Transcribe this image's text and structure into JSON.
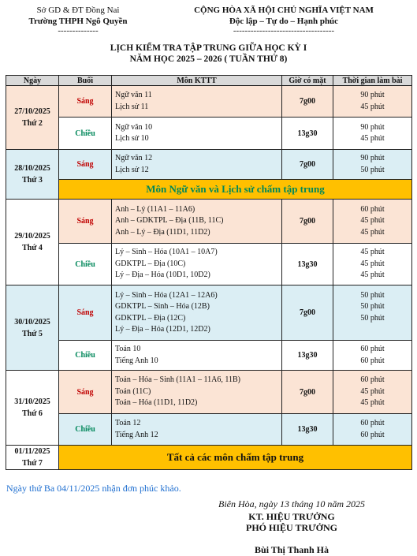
{
  "header": {
    "left_line1": "Sở GD & ĐT Đồng Nai",
    "left_line2": "Trường THPH Ngô Quyền",
    "left_line3": "--------------",
    "right_line1": "CỘNG HÒA XÃ HỘI CHỦ NGHĨA VIỆT NAM",
    "right_line2": "Độc lập – Tự do – Hạnh phúc",
    "right_line3": "-----------------------------------"
  },
  "title": {
    "line1": "LỊCH KIỂM TRA TẬP TRUNG GIỮA HỌC KỲ I",
    "line2": "NĂM HỌC 2025 – 2026 ( TUẦN THỨ 8)"
  },
  "table": {
    "headers": [
      "Ngày",
      "Buổi",
      "Môn KTTT",
      "Giờ có mặt",
      "Thời gian làm bài"
    ],
    "days": [
      {
        "date": "27/10/2025",
        "weekday": "Thứ 2",
        "sessions": [
          {
            "name": "Sáng",
            "subjects": [
              "Ngữ văn 11",
              "Lịch sử 11"
            ],
            "time": "7g00",
            "durations": [
              "90 phút",
              "45 phút"
            ]
          },
          {
            "name": "Chiều",
            "subjects": [
              "Ngữ văn 10",
              "Lịch sử 10"
            ],
            "time": "13g30",
            "durations": [
              "90 phút",
              "45 phút"
            ]
          }
        ]
      },
      {
        "date": "28/10/2025",
        "weekday": "Thứ 3",
        "sessions": [
          {
            "name": "Sáng",
            "subjects": [
              "Ngữ văn 12",
              "Lịch sử 12"
            ],
            "time": "7g00",
            "durations": [
              "90 phút",
              "50 phút"
            ]
          }
        ],
        "banner": "Môn Ngữ văn và Lịch sử chấm tập trung"
      },
      {
        "date": "29/10/2025",
        "weekday": "Thứ 4",
        "sessions": [
          {
            "name": "Sáng",
            "subjects": [
              "Anh – Lý (11A1 – 11A6)",
              "Anh – GDKTPL – Địa (11B, 11C)",
              "Anh – Lý – Địa (11D1, 11D2)"
            ],
            "time": "7g00",
            "durations": [
              "60 phút",
              "45 phút",
              "45 phút"
            ]
          },
          {
            "name": "Chiều",
            "subjects": [
              "Lý – Sinh – Hóa  (10A1 – 10A7)",
              "GDKTPL – Địa (10C)",
              "Lý – Địa – Hóa  (10D1, 10D2)"
            ],
            "time": "13g30",
            "durations": [
              "45 phút",
              "45 phút",
              "45 phút"
            ]
          }
        ]
      },
      {
        "date": "30/10/2025",
        "weekday": "Thứ 5",
        "sessions": [
          {
            "name": "Sáng",
            "subjects": [
              "Lý – Sinh – Hóa  (12A1 – 12A6)",
              "GDKTPL – Sinh – Hóa (12B)",
              "GDKTPL – Địa (12C)",
              "Lý – Địa – Hóa  (12D1, 12D2)"
            ],
            "time": "7g00",
            "durations": [
              "50 phút",
              "50 phút",
              "50 phút",
              ""
            ]
          },
          {
            "name": "Chiều",
            "subjects": [
              "Toán 10",
              "Tiếng Anh 10"
            ],
            "time": "13g30",
            "durations": [
              "60 phút",
              "60 phút"
            ]
          }
        ]
      },
      {
        "date": "31/10/2025",
        "weekday": "Thứ 6",
        "sessions": [
          {
            "name": "Sáng",
            "subjects": [
              "Toán – Hóa – Sinh (11A1 – 11A6, 11B)",
              "Toán (11C)",
              "Toán – Hóa (11D1, 11D2)"
            ],
            "time": "7g00",
            "durations": [
              "60 phút",
              "45 phút",
              "45 phút"
            ]
          },
          {
            "name": "Chiều",
            "subjects": [
              "Toán 12",
              "Tiếng Anh 12"
            ],
            "time": "13g30",
            "durations": [
              "60 phút",
              "60 phút"
            ]
          }
        ]
      },
      {
        "date": "01/11/2025",
        "weekday": "Thứ 7",
        "banner": "Tất cả các môn chấm tập trung"
      }
    ]
  },
  "note": "Ngày thứ Ba 04/11/2025 nhận đơn phúc khảo.",
  "signature": {
    "place_date": "Biên Hòa, ngày 13 tháng 10 năm 2025",
    "line1": "KT. HIỆU TRƯỞNG",
    "line2": "PHÓ HIỆU TRƯỞNG",
    "name": "Bùi Thị Thanh Hà"
  }
}
